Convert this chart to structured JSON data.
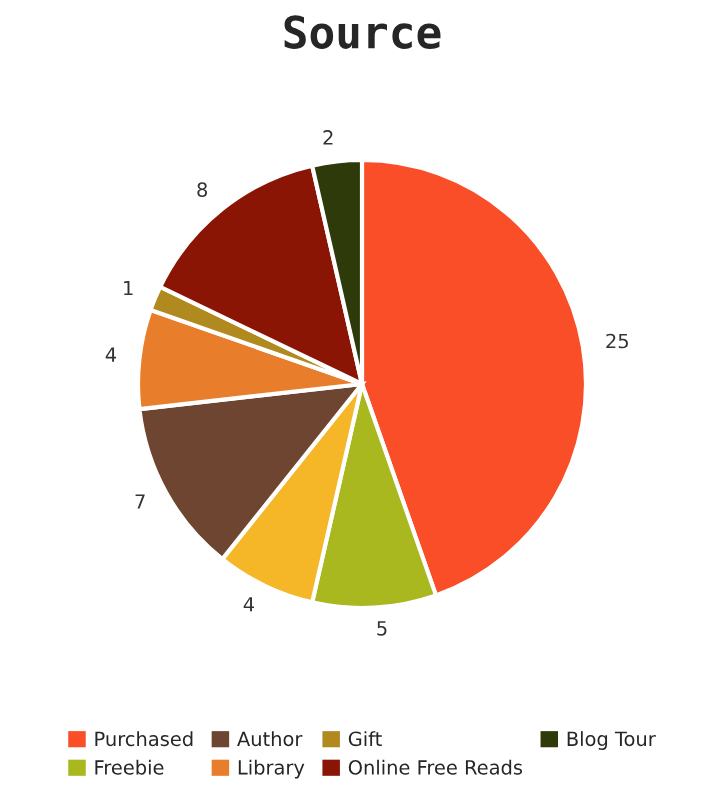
{
  "chart_data": {
    "type": "pie",
    "title": "Source",
    "categories": [
      "Purchased",
      "Freebie",
      null,
      "Author",
      "Library",
      "Gift",
      "Online Free Reads",
      "Blog Tour"
    ],
    "values": [
      25,
      5,
      4,
      7,
      4,
      1,
      8,
      2
    ],
    "colors": [
      "#f94e28",
      "#a8b81e",
      "#f5b728",
      "#6e4530",
      "#e87d2c",
      "#b08a1e",
      "#8a1505",
      "#2e3a0a"
    ],
    "data_labels": true,
    "legend": "bottom"
  }
}
